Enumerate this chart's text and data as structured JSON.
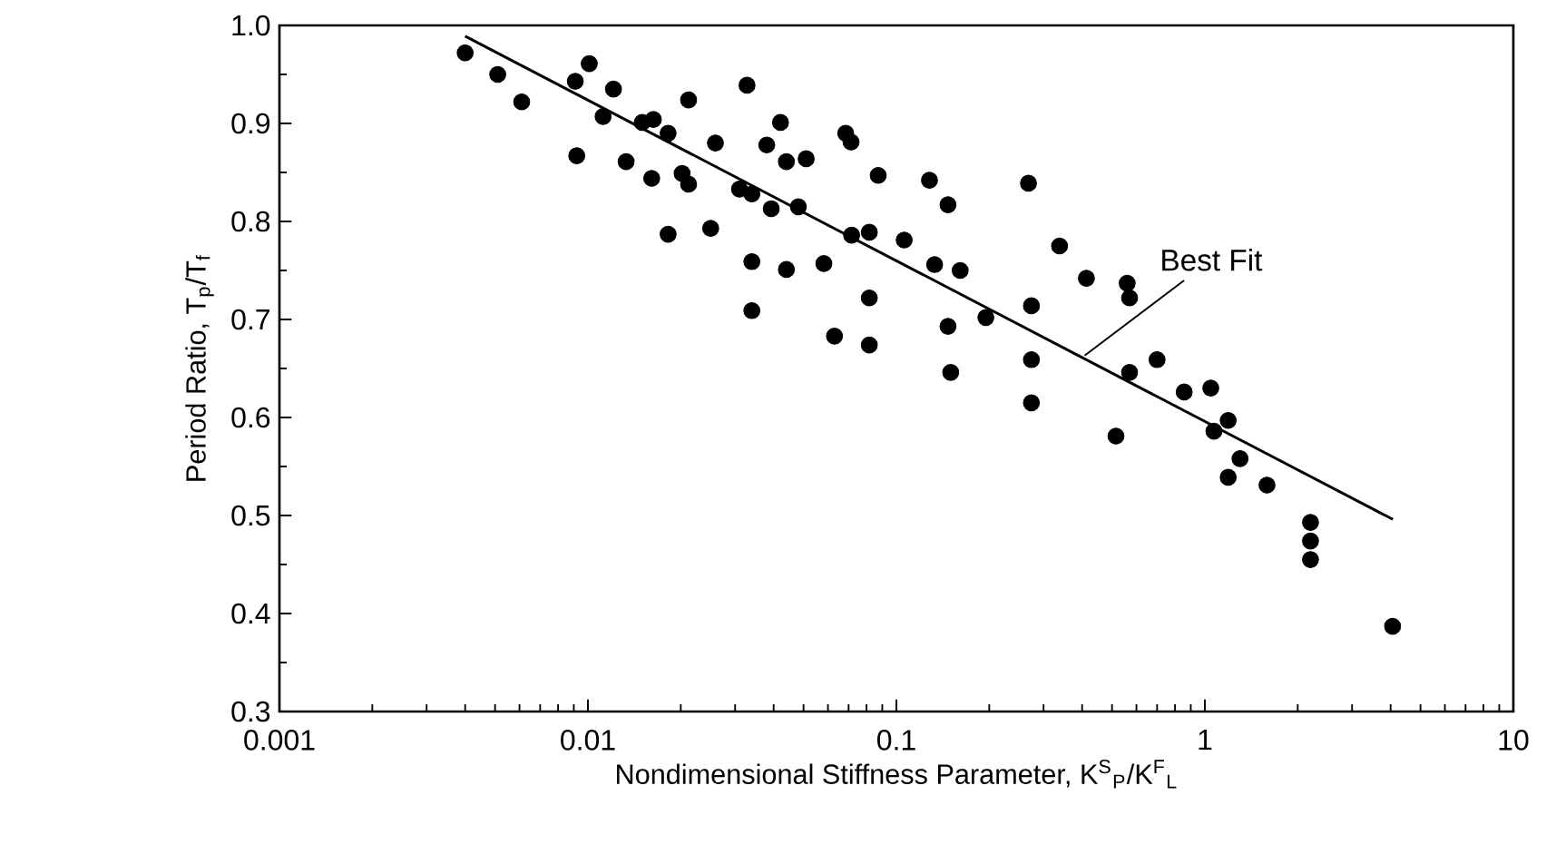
{
  "chart_data": {
    "type": "scatter",
    "xlabel": "Nondimensional Stiffness Parameter, K$^{S}$$_{P}$/K$^{F}$$_{L}$",
    "ylabel": "Period Ratio, T$_{p}$/T$_{f}$",
    "log": "x",
    "xlim": [
      0.001,
      10
    ],
    "xticks": [
      0.001,
      0.01,
      0.1,
      1,
      10
    ],
    "ylim": [
      0.3,
      1.0
    ],
    "yticks": [
      0.3,
      0.4,
      0.5,
      0.6,
      0.7,
      0.8,
      0.9,
      {
        "value": 1.0,
        "label": "1.0"
      }
    ],
    "grid": false,
    "legend": false,
    "series": [
      {
        "color": "#000000",
        "marker": "circle",
        "x": [
          0.004,
          0.0051,
          0.0061,
          0.0091,
          0.0101,
          0.0121,
          0.0112,
          0.015,
          0.0163,
          0.0182,
          0.0212,
          0.0259,
          0.0092,
          0.0133,
          0.0161,
          0.0202,
          0.0212,
          0.0182,
          0.025,
          0.0328,
          0.0421,
          0.038,
          0.044,
          0.051,
          0.0685,
          0.0713,
          0.031,
          0.034,
          0.0393,
          0.0481,
          0.0873,
          0.128,
          0.147,
          0.268,
          0.0716,
          0.0817,
          0.106,
          0.133,
          0.161,
          0.338,
          0.413,
          0.56,
          0.57,
          0.034,
          0.044,
          0.0582,
          0.034,
          0.0817,
          0.063,
          0.0817,
          0.195,
          0.274,
          0.147,
          0.15,
          0.274,
          0.57,
          0.274,
          0.515,
          0.7,
          0.857,
          1.045,
          1.19,
          1.07,
          1.3,
          1.19,
          1.59,
          2.2,
          2.2,
          2.2,
          4.06
        ],
        "values": [
          0.972,
          0.95,
          0.922,
          0.943,
          0.961,
          0.935,
          0.907,
          0.901,
          0.904,
          0.89,
          0.924,
          0.88,
          0.867,
          0.861,
          0.844,
          0.849,
          0.838,
          0.787,
          0.793,
          0.939,
          0.901,
          0.878,
          0.861,
          0.864,
          0.89,
          0.881,
          0.833,
          0.828,
          0.813,
          0.815,
          0.847,
          0.842,
          0.817,
          0.839,
          0.786,
          0.789,
          0.781,
          0.756,
          0.75,
          0.775,
          0.742,
          0.737,
          0.722,
          0.759,
          0.751,
          0.757,
          0.709,
          0.722,
          0.683,
          0.674,
          0.702,
          0.714,
          0.693,
          0.646,
          0.659,
          0.646,
          0.615,
          0.581,
          0.659,
          0.626,
          0.63,
          0.597,
          0.586,
          0.558,
          0.539,
          0.531,
          0.493,
          0.474,
          0.455,
          0.387
        ]
      },
      {
        "type": "line",
        "name": "Best Fit",
        "color": "#000000",
        "marker": "none",
        "line_style": "solid",
        "x": [
          0.004,
          4.07
        ],
        "values": [
          0.989,
          0.496
        ]
      }
    ]
  }
}
